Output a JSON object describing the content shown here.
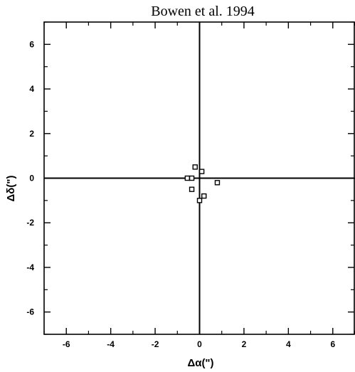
{
  "chart_data": {
    "type": "scatter",
    "title": "Bowen et al. 1994",
    "xlabel": "Δα(\")",
    "ylabel": "Δδ(\")",
    "xlim": [
      -7,
      7
    ],
    "ylim": [
      -7,
      7
    ],
    "xticks": [
      -6,
      -4,
      -2,
      0,
      2,
      4,
      6
    ],
    "yticks": [
      -6,
      -4,
      -2,
      0,
      2,
      4,
      6
    ],
    "xtick_labels": [
      "-6",
      "-4",
      "-2",
      "0",
      "2",
      "4",
      "6"
    ],
    "ytick_labels": [
      "-6",
      "-4",
      "-2",
      "0",
      "2",
      "4",
      "6"
    ],
    "reference_lines": {
      "x": 0,
      "y": 0
    },
    "marker": "open-square",
    "grid": false,
    "series": [
      {
        "points": [
          {
            "x": -0.55,
            "y": 0.0
          },
          {
            "x": -0.35,
            "y": 0.0
          },
          {
            "x": -0.2,
            "y": 0.5
          },
          {
            "x": 0.1,
            "y": 0.3
          },
          {
            "x": -0.35,
            "y": -0.5
          },
          {
            "x": 0.2,
            "y": -0.8
          },
          {
            "x": 0.0,
            "y": -1.0
          },
          {
            "x": 0.8,
            "y": -0.2
          }
        ]
      }
    ]
  }
}
